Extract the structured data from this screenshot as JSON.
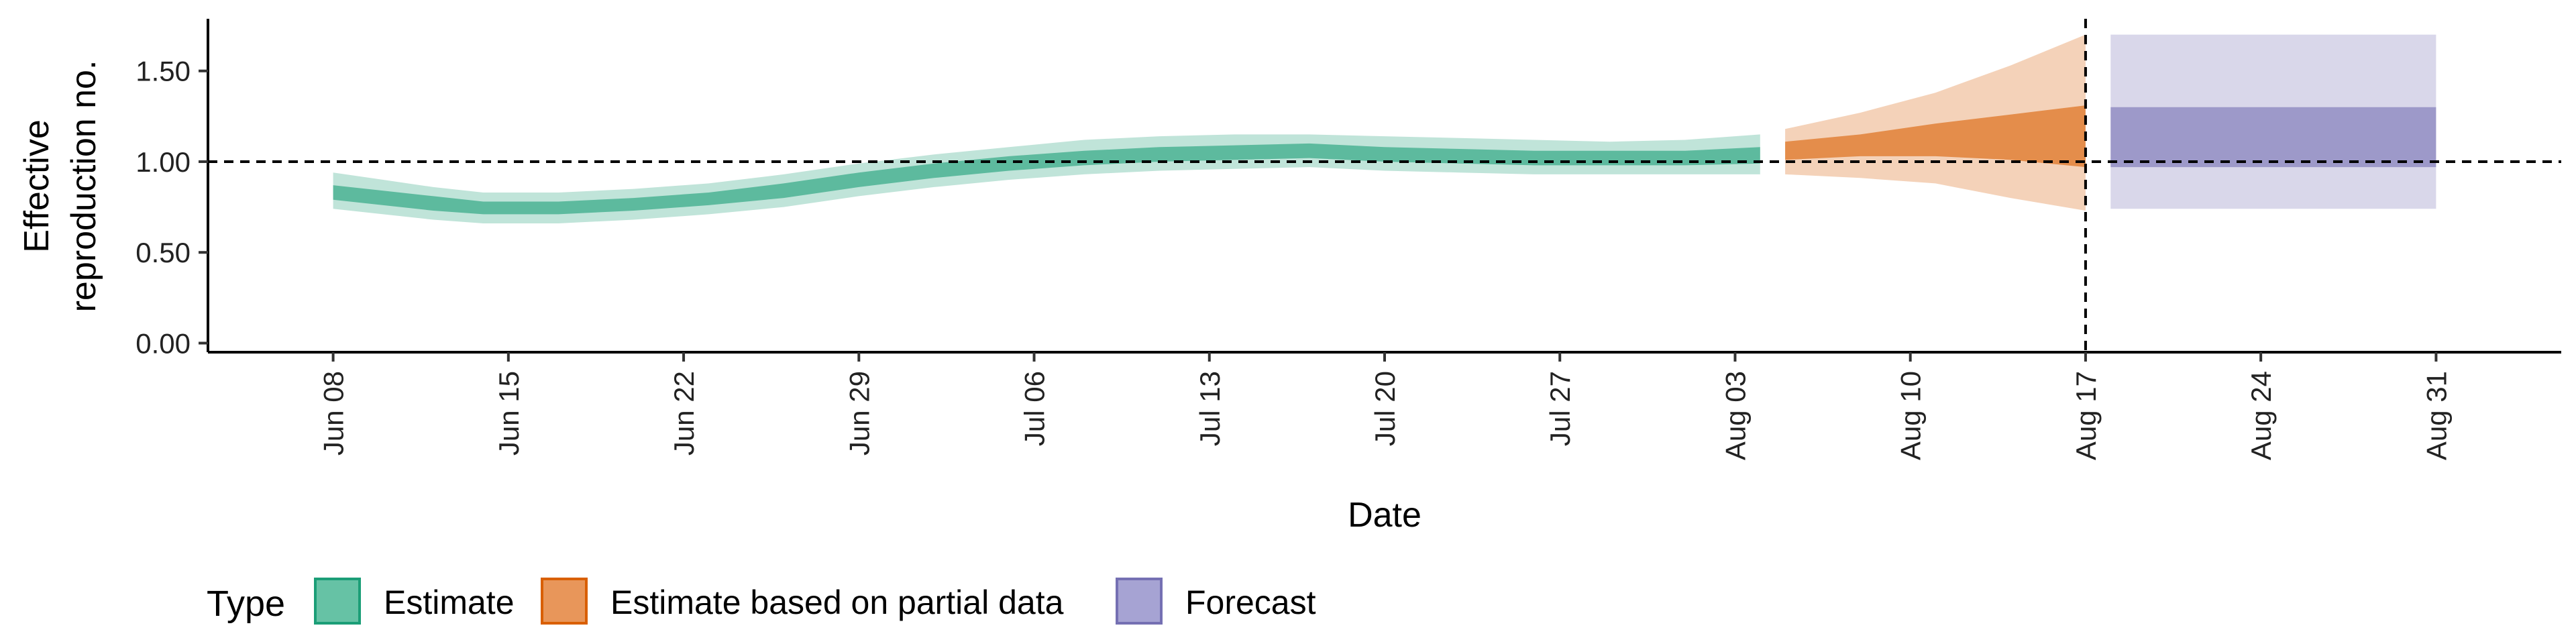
{
  "chart_data": {
    "type": "area",
    "title": "",
    "xlabel": "Date",
    "ylabel": [
      "Effective",
      "reproduction no."
    ],
    "x_range": [
      "2020-06-03",
      "2020-09-05"
    ],
    "ylim": [
      -0.05,
      1.78
    ],
    "y_ticks": [
      "0.00",
      "0.50",
      "1.00",
      "1.50"
    ],
    "x_ticks": [
      {
        "date": "2020-06-08",
        "label": "Jun 08"
      },
      {
        "date": "2020-06-15",
        "label": "Jun 15"
      },
      {
        "date": "2020-06-22",
        "label": "Jun 22"
      },
      {
        "date": "2020-06-29",
        "label": "Jun 29"
      },
      {
        "date": "2020-07-06",
        "label": "Jul 06"
      },
      {
        "date": "2020-07-13",
        "label": "Jul 13"
      },
      {
        "date": "2020-07-20",
        "label": "Jul 20"
      },
      {
        "date": "2020-07-27",
        "label": "Jul 27"
      },
      {
        "date": "2020-08-03",
        "label": "Aug 03"
      },
      {
        "date": "2020-08-10",
        "label": "Aug 10"
      },
      {
        "date": "2020-08-17",
        "label": "Aug 17"
      },
      {
        "date": "2020-08-24",
        "label": "Aug 24"
      },
      {
        "date": "2020-08-31",
        "label": "Aug 31"
      }
    ],
    "reference_hline": 1.0,
    "reference_vline": "2020-08-17",
    "grid": false,
    "legend": {
      "title": "Type",
      "position": "bottom-left",
      "entries": [
        {
          "label": "Estimate",
          "fill": "#66c2a5",
          "stroke": "#1b9e77"
        },
        {
          "label": "Estimate based on partial data",
          "fill": "#e8965a",
          "stroke": "#d95f02"
        },
        {
          "label": "Forecast",
          "fill": "#a6a3d3",
          "stroke": "#7570b3"
        }
      ]
    },
    "series": [
      {
        "type": "Estimate",
        "color": "#1b9e77",
        "data": [
          {
            "date": "2020-06-08",
            "median": 0.83,
            "lo50": 0.79,
            "hi50": 0.87,
            "lo90": 0.74,
            "hi90": 0.94
          },
          {
            "date": "2020-06-10",
            "median": 0.8,
            "lo50": 0.76,
            "hi50": 0.84,
            "lo90": 0.71,
            "hi90": 0.9
          },
          {
            "date": "2020-06-12",
            "median": 0.77,
            "lo50": 0.73,
            "hi50": 0.81,
            "lo90": 0.68,
            "hi90": 0.86
          },
          {
            "date": "2020-06-14",
            "median": 0.74,
            "lo50": 0.71,
            "hi50": 0.78,
            "lo90": 0.66,
            "hi90": 0.83
          },
          {
            "date": "2020-06-17",
            "median": 0.74,
            "lo50": 0.71,
            "hi50": 0.78,
            "lo90": 0.66,
            "hi90": 0.83
          },
          {
            "date": "2020-06-20",
            "median": 0.76,
            "lo50": 0.73,
            "hi50": 0.8,
            "lo90": 0.68,
            "hi90": 0.85
          },
          {
            "date": "2020-06-23",
            "median": 0.79,
            "lo50": 0.76,
            "hi50": 0.83,
            "lo90": 0.71,
            "hi90": 0.88
          },
          {
            "date": "2020-06-26",
            "median": 0.84,
            "lo50": 0.8,
            "hi50": 0.88,
            "lo90": 0.75,
            "hi90": 0.93
          },
          {
            "date": "2020-06-29",
            "median": 0.9,
            "lo50": 0.86,
            "hi50": 0.94,
            "lo90": 0.81,
            "hi90": 0.99
          },
          {
            "date": "2020-07-02",
            "median": 0.95,
            "lo50": 0.91,
            "hi50": 0.99,
            "lo90": 0.86,
            "hi90": 1.04
          },
          {
            "date": "2020-07-05",
            "median": 0.99,
            "lo50": 0.95,
            "hi50": 1.03,
            "lo90": 0.9,
            "hi90": 1.08
          },
          {
            "date": "2020-07-08",
            "median": 1.02,
            "lo50": 0.98,
            "hi50": 1.06,
            "lo90": 0.93,
            "hi90": 1.12
          },
          {
            "date": "2020-07-11",
            "median": 1.04,
            "lo50": 1.0,
            "hi50": 1.08,
            "lo90": 0.95,
            "hi90": 1.14
          },
          {
            "date": "2020-07-14",
            "median": 1.05,
            "lo50": 1.01,
            "hi50": 1.09,
            "lo90": 0.96,
            "hi90": 1.15
          },
          {
            "date": "2020-07-17",
            "median": 1.06,
            "lo50": 1.02,
            "hi50": 1.1,
            "lo90": 0.97,
            "hi90": 1.15
          },
          {
            "date": "2020-07-20",
            "median": 1.04,
            "lo50": 1.0,
            "hi50": 1.08,
            "lo90": 0.95,
            "hi90": 1.14
          },
          {
            "date": "2020-07-23",
            "median": 1.03,
            "lo50": 0.99,
            "hi50": 1.07,
            "lo90": 0.94,
            "hi90": 1.13
          },
          {
            "date": "2020-07-26",
            "median": 1.02,
            "lo50": 0.98,
            "hi50": 1.06,
            "lo90": 0.93,
            "hi90": 1.12
          },
          {
            "date": "2020-07-29",
            "median": 1.02,
            "lo50": 0.98,
            "hi50": 1.06,
            "lo90": 0.93,
            "hi90": 1.11
          },
          {
            "date": "2020-08-01",
            "median": 1.02,
            "lo50": 0.98,
            "hi50": 1.06,
            "lo90": 0.93,
            "hi90": 1.12
          },
          {
            "date": "2020-08-04",
            "median": 1.03,
            "lo50": 0.99,
            "hi50": 1.08,
            "lo90": 0.93,
            "hi90": 1.15
          }
        ]
      },
      {
        "type": "Estimate based on partial data",
        "color": "#d95f02",
        "data": [
          {
            "date": "2020-08-05",
            "median": 1.06,
            "lo50": 1.01,
            "hi50": 1.11,
            "lo90": 0.93,
            "hi90": 1.18
          },
          {
            "date": "2020-08-08",
            "median": 1.09,
            "lo50": 1.03,
            "hi50": 1.15,
            "lo90": 0.91,
            "hi90": 1.27
          },
          {
            "date": "2020-08-11",
            "median": 1.12,
            "lo50": 1.03,
            "hi50": 1.21,
            "lo90": 0.88,
            "hi90": 1.38
          },
          {
            "date": "2020-08-14",
            "median": 1.14,
            "lo50": 1.01,
            "hi50": 1.26,
            "lo90": 0.8,
            "hi90": 1.53
          },
          {
            "date": "2020-08-17",
            "median": 1.15,
            "lo50": 0.97,
            "hi50": 1.31,
            "lo90": 0.73,
            "hi90": 1.7
          }
        ]
      },
      {
        "type": "Forecast",
        "color": "#7570b3",
        "data": [
          {
            "date": "2020-08-18",
            "median": 1.13,
            "lo50": 0.97,
            "hi50": 1.3,
            "lo90": 0.74,
            "hi90": 1.7
          },
          {
            "date": "2020-08-31",
            "median": 1.13,
            "lo50": 0.97,
            "hi50": 1.3,
            "lo90": 0.74,
            "hi90": 1.7
          }
        ]
      }
    ]
  }
}
